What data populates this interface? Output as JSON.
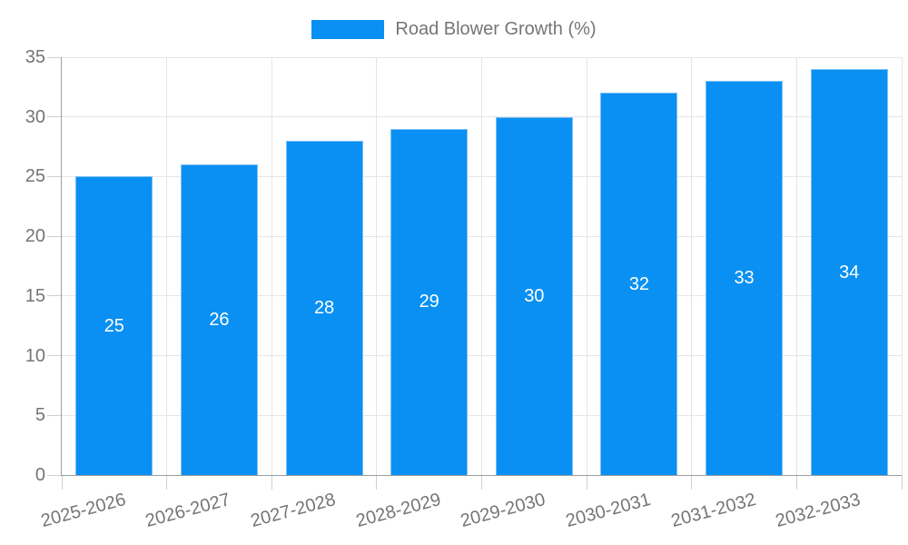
{
  "chart_data": {
    "type": "bar",
    "title": "",
    "series_name": "Road Blower Growth (%)",
    "categories": [
      "2025-2026",
      "2026-2027",
      "2027-2028",
      "2028-2029",
      "2029-2030",
      "2030-2031",
      "2031-2032",
      "2032-2033"
    ],
    "values": [
      25,
      26,
      28,
      29,
      30,
      32,
      33,
      34
    ],
    "ylim": [
      0,
      35
    ],
    "yticks": [
      0,
      5,
      10,
      15,
      20,
      25,
      30,
      35
    ],
    "grid": "horizontal-and-vertical",
    "legend_position": "top-center",
    "value_labels": "centered-inside-bars",
    "x_label_rotation_deg": -15,
    "colors": {
      "bar": "#0990f2",
      "bar_border": "#7cc0f8",
      "value_label_text": "#ffffff",
      "grid": "#e5e5e5",
      "tick": "#cfcfcf",
      "axis": "#9e9e9e",
      "text": "#757575",
      "background": "#ffffff"
    }
  }
}
